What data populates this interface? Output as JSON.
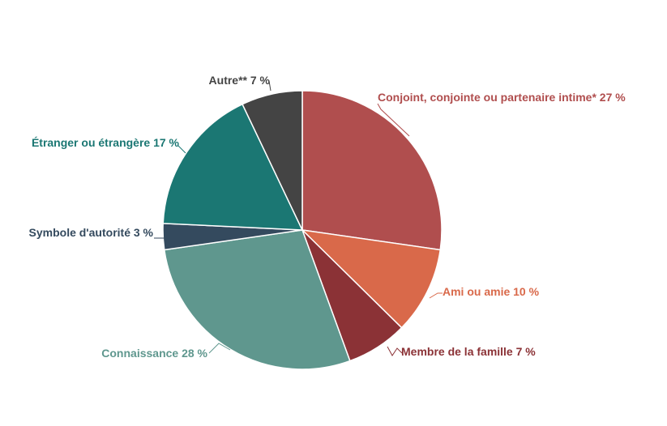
{
  "chart_data": {
    "type": "pie",
    "title": "",
    "slices": [
      {
        "label": "Conjoint, conjointe ou partenaire intime* 27 %",
        "name": "Conjoint, conjointe ou partenaire intime*",
        "value": 27,
        "color": "#b04e4e"
      },
      {
        "label": "Ami ou amie 10 %",
        "name": "Ami ou amie",
        "value": 10,
        "color": "#d9694a"
      },
      {
        "label": "Membre de la famille 7 %",
        "name": "Membre de la famille",
        "value": 7,
        "color": "#8b3236"
      },
      {
        "label": "Connaissance 28 %",
        "name": "Connaissance",
        "value": 28,
        "color": "#5f978e"
      },
      {
        "label": "Symbole d'autorité 3 %",
        "name": "Symbole d'autorité",
        "value": 3,
        "color": "#344a5e"
      },
      {
        "label": "Étranger ou étrangère 17 %",
        "name": "Étranger ou étrangère",
        "value": 17,
        "color": "#1b7773"
      },
      {
        "label": "Autre** 7 %",
        "name": "Autre**",
        "value": 7,
        "color": "#444444"
      }
    ]
  }
}
